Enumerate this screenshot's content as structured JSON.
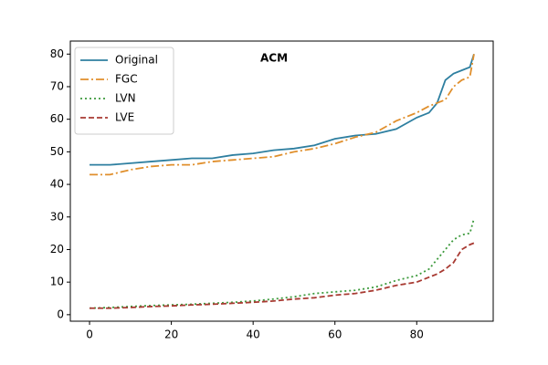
{
  "chart_data": {
    "type": "line",
    "title": "ACM",
    "x": [
      0,
      5,
      10,
      15,
      20,
      25,
      30,
      35,
      40,
      45,
      50,
      55,
      60,
      65,
      70,
      75,
      80,
      83,
      85,
      87,
      89,
      91,
      93,
      94
    ],
    "series": [
      {
        "name": "Original",
        "color": "#2e7fa0",
        "dash": "solid",
        "values": [
          46,
          46,
          46.5,
          47,
          47.5,
          48,
          48,
          49,
          49.5,
          50.5,
          51,
          52,
          54,
          55,
          55.5,
          57,
          60.5,
          62,
          65,
          72,
          74,
          75,
          76,
          80
        ]
      },
      {
        "name": "FGC",
        "color": "#e08f2c",
        "dash": "dashdot",
        "values": [
          43,
          43,
          44.5,
          45.5,
          46,
          46,
          47,
          47.5,
          48,
          48.5,
          50,
          51,
          52.5,
          54.5,
          56,
          59.5,
          62,
          64,
          65,
          66,
          70,
          72,
          73,
          80
        ]
      },
      {
        "name": "LVN",
        "color": "#3c9a3c",
        "dash": "dotted",
        "values": [
          2,
          2.2,
          2.5,
          2.8,
          3,
          3.2,
          3.5,
          3.8,
          4.2,
          4.8,
          5.5,
          6.5,
          7,
          7.5,
          8.5,
          10.5,
          12,
          14,
          17,
          20,
          23,
          24.5,
          25,
          29.5
        ]
      },
      {
        "name": "LVE",
        "color": "#a83a32",
        "dash": "dashed",
        "values": [
          2,
          2,
          2.2,
          2.5,
          2.7,
          3,
          3.2,
          3.5,
          3.8,
          4.2,
          4.8,
          5.2,
          6,
          6.5,
          7.5,
          9,
          10,
          11.5,
          12.5,
          14,
          16,
          20,
          21.5,
          22
        ]
      }
    ],
    "xlim": [
      -4.7,
      98.7
    ],
    "ylim": [
      -2,
      84
    ],
    "xticks": [
      0,
      20,
      40,
      60,
      80
    ],
    "yticks": [
      0,
      10,
      20,
      30,
      40,
      50,
      60,
      70,
      80
    ],
    "legend": "upper left"
  }
}
